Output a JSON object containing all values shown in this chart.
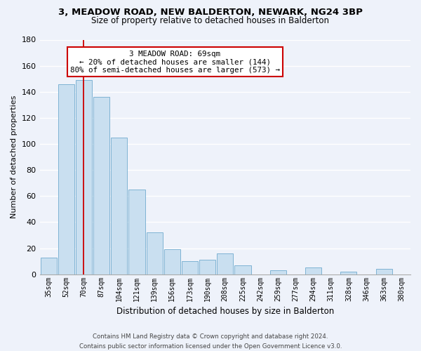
{
  "title": "3, MEADOW ROAD, NEW BALDERTON, NEWARK, NG24 3BP",
  "subtitle": "Size of property relative to detached houses in Balderton",
  "xlabel": "Distribution of detached houses by size in Balderton",
  "ylabel": "Number of detached properties",
  "bar_labels": [
    "35sqm",
    "52sqm",
    "70sqm",
    "87sqm",
    "104sqm",
    "121sqm",
    "139sqm",
    "156sqm",
    "173sqm",
    "190sqm",
    "208sqm",
    "225sqm",
    "242sqm",
    "259sqm",
    "277sqm",
    "294sqm",
    "311sqm",
    "328sqm",
    "346sqm",
    "363sqm",
    "380sqm"
  ],
  "bar_heights": [
    13,
    146,
    149,
    136,
    105,
    65,
    32,
    19,
    10,
    11,
    16,
    7,
    0,
    3,
    0,
    5,
    0,
    2,
    0,
    4,
    0
  ],
  "bar_color": "#c9dff0",
  "bar_edge_color": "#7fb3d3",
  "vline_x_index": 2,
  "vline_color": "#cc0000",
  "annotation_title": "3 MEADOW ROAD: 69sqm",
  "annotation_line1": "← 20% of detached houses are smaller (144)",
  "annotation_line2": "80% of semi-detached houses are larger (573) →",
  "annotation_box_color": "#ffffff",
  "annotation_box_edge": "#cc0000",
  "ylim": [
    0,
    180
  ],
  "yticks": [
    0,
    20,
    40,
    60,
    80,
    100,
    120,
    140,
    160,
    180
  ],
  "footer1": "Contains HM Land Registry data © Crown copyright and database right 2024.",
  "footer2": "Contains public sector information licensed under the Open Government Licence v3.0.",
  "bg_color": "#eef2fa",
  "grid_color": "#ffffff",
  "title_fontsize": 9.5,
  "subtitle_fontsize": 8.5
}
